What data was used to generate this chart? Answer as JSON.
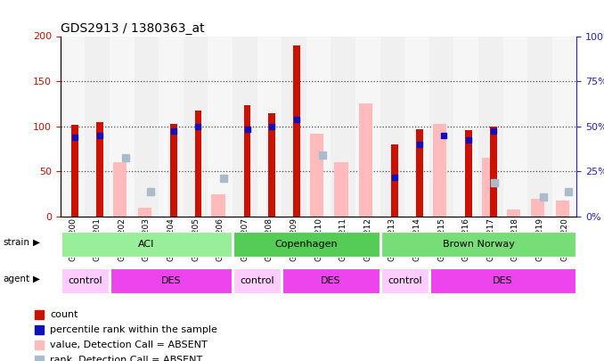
{
  "title": "GDS2913 / 1380363_at",
  "samples": [
    "GSM92200",
    "GSM92201",
    "GSM92202",
    "GSM92203",
    "GSM92204",
    "GSM92205",
    "GSM92206",
    "GSM92207",
    "GSM92208",
    "GSM92209",
    "GSM92210",
    "GSM92211",
    "GSM92212",
    "GSM92213",
    "GSM92214",
    "GSM92215",
    "GSM92216",
    "GSM92217",
    "GSM92218",
    "GSM92219",
    "GSM92220"
  ],
  "count": [
    102,
    105,
    null,
    null,
    103,
    118,
    null,
    123,
    115,
    190,
    null,
    null,
    null,
    80,
    97,
    null,
    96,
    100,
    null,
    null,
    null
  ],
  "percentile_left": [
    88,
    90,
    null,
    null,
    95,
    100,
    null,
    97,
    100,
    108,
    null,
    null,
    null,
    43,
    80,
    90,
    85,
    95,
    null,
    null,
    null
  ],
  "value_absent": [
    null,
    null,
    60,
    10,
    null,
    null,
    25,
    null,
    null,
    null,
    92,
    60,
    125,
    null,
    null,
    103,
    null,
    65,
    8,
    20,
    18
  ],
  "rank_absent_left": [
    null,
    null,
    65,
    28,
    null,
    null,
    42,
    null,
    null,
    null,
    68,
    null,
    null,
    null,
    null,
    null,
    null,
    38,
    null,
    22,
    28
  ],
  "ylim_left": [
    0,
    200
  ],
  "ylim_right": [
    0,
    100
  ],
  "yticks_left": [
    0,
    50,
    100,
    150,
    200
  ],
  "yticks_right": [
    0,
    25,
    50,
    75,
    100
  ],
  "color_count": "#cc1100",
  "color_percentile": "#1111bb",
  "color_value_absent": "#ffbbbb",
  "color_rank_absent": "#aabbcc",
  "strain_groups": [
    {
      "label": "ACI",
      "start": 0,
      "end": 7,
      "color": "#99ee99"
    },
    {
      "label": "Copenhagen",
      "start": 7,
      "end": 13,
      "color": "#55cc55"
    },
    {
      "label": "Brown Norway",
      "start": 13,
      "end": 21,
      "color": "#77dd77"
    }
  ],
  "agent_groups": [
    {
      "label": "control",
      "start": 0,
      "end": 2,
      "color": "#ffccff"
    },
    {
      "label": "DES",
      "start": 2,
      "end": 7,
      "color": "#ee44ee"
    },
    {
      "label": "control",
      "start": 7,
      "end": 9,
      "color": "#ffccff"
    },
    {
      "label": "DES",
      "start": 9,
      "end": 13,
      "color": "#ee44ee"
    },
    {
      "label": "control",
      "start": 13,
      "end": 15,
      "color": "#ffccff"
    },
    {
      "label": "DES",
      "start": 15,
      "end": 21,
      "color": "#ee44ee"
    }
  ],
  "background_color": "#ffffff",
  "tick_color_left": "#cc1100",
  "tick_color_right": "#2222cc"
}
